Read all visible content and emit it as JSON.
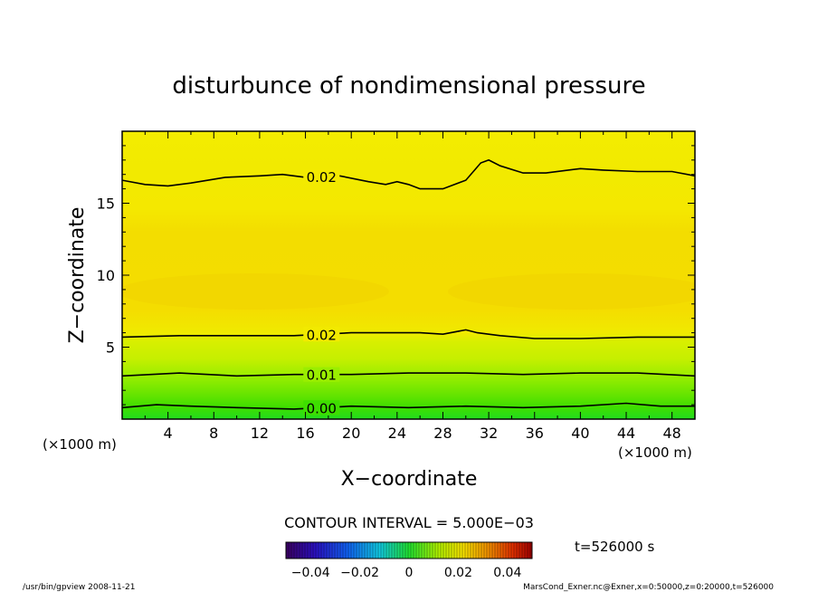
{
  "chart_data": {
    "type": "heatmap",
    "title": "disturbunce of nondimensional pressure",
    "xlabel": "X−coordinate",
    "ylabel": "Z−coordinate",
    "x_unit": "(×1000 m)",
    "y_unit": "(×1000 m)",
    "xlim": [
      0,
      50
    ],
    "ylim": [
      0,
      20
    ],
    "x_ticks": [
      4,
      8,
      12,
      16,
      20,
      24,
      28,
      32,
      36,
      40,
      44,
      48
    ],
    "y_ticks": [
      5,
      10,
      15
    ],
    "contour_interval_text": "CONTOUR INTERVAL = 5.000E−03",
    "time_label": "t=526000 s",
    "colorbar": {
      "range": [
        -0.05,
        0.05
      ],
      "ticks": [
        {
          "value": -0.04,
          "label": "−0.04"
        },
        {
          "value": -0.02,
          "label": "−0.02"
        },
        {
          "value": 0,
          "label": "0"
        },
        {
          "value": 0.02,
          "label": "0.02"
        },
        {
          "value": 0.04,
          "label": "0.04"
        }
      ]
    },
    "contours": [
      {
        "label": "0.02",
        "x": [
          0,
          2,
          4,
          6,
          9,
          12,
          14,
          16,
          19,
          21.5,
          23,
          24,
          25,
          26,
          28,
          30,
          31.3,
          32,
          33,
          35,
          37,
          40,
          42,
          45,
          48,
          50
        ],
        "y": [
          16.6,
          16.3,
          16.2,
          16.4,
          16.8,
          16.9,
          17.0,
          16.8,
          16.9,
          16.5,
          16.3,
          16.5,
          16.3,
          16.0,
          16.0,
          16.6,
          17.8,
          18.0,
          17.6,
          17.1,
          17.1,
          17.4,
          17.3,
          17.2,
          17.2,
          16.9
        ],
        "label_at": 17.4
      },
      {
        "label": "0.02",
        "x": [
          0,
          5,
          10,
          15,
          20,
          23,
          26,
          28,
          30,
          31,
          33,
          36,
          40,
          45,
          50
        ],
        "y": [
          5.7,
          5.8,
          5.8,
          5.8,
          6.0,
          6.0,
          6.0,
          5.9,
          6.2,
          6.0,
          5.8,
          5.6,
          5.6,
          5.7,
          5.7
        ],
        "label_at": 17.4
      },
      {
        "label": "0.01",
        "x": [
          0,
          5,
          10,
          15,
          20,
          25,
          30,
          35,
          40,
          45,
          50
        ],
        "y": [
          3.0,
          3.2,
          3.0,
          3.1,
          3.1,
          3.2,
          3.2,
          3.1,
          3.2,
          3.2,
          3.0
        ],
        "label_at": 17.4
      },
      {
        "label": "0.00",
        "x": [
          0,
          3,
          6,
          10,
          15,
          20,
          25,
          30,
          35,
          40,
          44,
          47,
          50
        ],
        "y": [
          0.8,
          1.0,
          0.9,
          0.8,
          0.7,
          0.9,
          0.8,
          0.9,
          0.8,
          0.9,
          1.1,
          0.9,
          0.9
        ],
        "label_at": 17.4
      }
    ]
  },
  "footer": {
    "left": "/usr/bin/gpview   2008-11-21",
    "right": "MarsCond_Exner.nc@Exner,x=0:50000,z=0:20000,t=526000"
  }
}
